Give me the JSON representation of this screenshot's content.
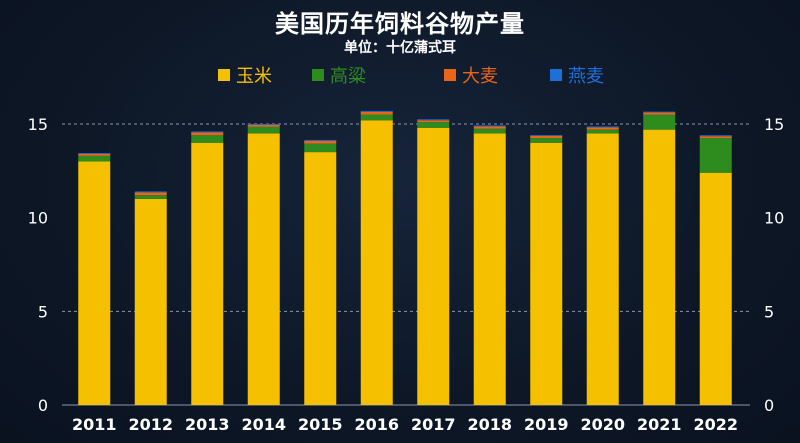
{
  "title": "美国历年饲料谷物产量",
  "subtitle": "单位：十亿蒲式耳",
  "chart_data": {
    "type": "bar",
    "stacked": true,
    "categories": [
      "2011",
      "2012",
      "2013",
      "2014",
      "2015",
      "2016",
      "2017",
      "2018",
      "2019",
      "2020",
      "2021",
      "2022"
    ],
    "series": [
      {
        "name": "玉米",
        "color": "#f5c000",
        "values": [
          13.0,
          11.0,
          14.0,
          14.5,
          13.5,
          15.2,
          14.8,
          14.5,
          14.0,
          14.5,
          14.7,
          12.4
        ]
      },
      {
        "name": "高粱",
        "color": "#2e8b1e",
        "values": [
          0.3,
          0.2,
          0.4,
          0.35,
          0.45,
          0.3,
          0.3,
          0.25,
          0.25,
          0.2,
          0.8,
          1.85
        ]
      },
      {
        "name": "大麦",
        "color": "#e8651a",
        "values": [
          0.1,
          0.15,
          0.15,
          0.1,
          0.15,
          0.15,
          0.1,
          0.12,
          0.12,
          0.12,
          0.12,
          0.1
        ]
      },
      {
        "name": "燕麦",
        "color": "#1e6fd8",
        "values": [
          0.05,
          0.05,
          0.05,
          0.05,
          0.05,
          0.05,
          0.05,
          0.05,
          0.04,
          0.05,
          0.04,
          0.05
        ]
      }
    ],
    "ylim": [
      0,
      17
    ],
    "yticks": [
      0,
      5,
      10,
      15
    ],
    "gridlines": [
      5,
      15
    ],
    "legend_position": "top"
  }
}
